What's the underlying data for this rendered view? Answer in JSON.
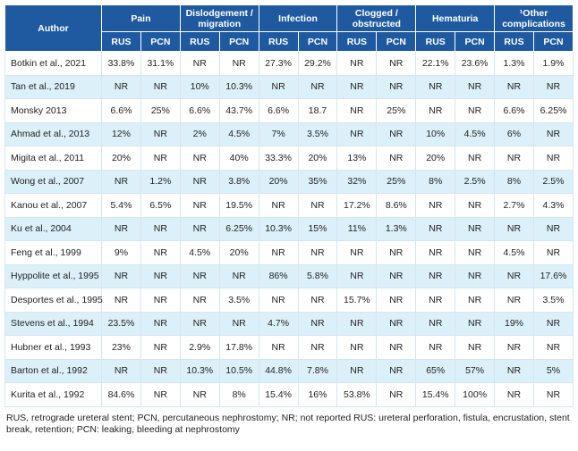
{
  "header": {
    "author": "Author",
    "groups": [
      "Pain",
      "Dislodgement / migration",
      "Infection",
      "Clogged / obstructed",
      "Hematuria",
      "¹Other complications"
    ],
    "subheaders": [
      "RUS",
      "PCN",
      "RUS",
      "PCN",
      "RUS",
      "PCN",
      "RUS",
      "PCN",
      "RUS",
      "PCN",
      "RUS",
      "PCN"
    ]
  },
  "table": {
    "rows": [
      [
        "Botkin et al., 2021",
        "33.8%",
        "31.1%",
        "NR",
        "NR",
        "27.3%",
        "29.2%",
        "NR",
        "NR",
        "22.1%",
        "23.6%",
        "1.3%",
        "1.9%"
      ],
      [
        "Tan et al., 2019",
        "NR",
        "NR",
        "10%",
        "10.3%",
        "NR",
        "NR",
        "NR",
        "NR",
        "NR",
        "NR",
        "NR",
        "NR"
      ],
      [
        "Monsky 2013",
        "6.6%",
        "25%",
        "6.6%",
        "43.7%",
        "6.6%",
        "18.7",
        "NR",
        "25%",
        "NR",
        "NR",
        "6.6%",
        "6.25%"
      ],
      [
        "Ahmad et al., 2013",
        "12%",
        "NR",
        "2%",
        "4.5%",
        "7%",
        "3.5%",
        "NR",
        "NR",
        "10%",
        "4.5%",
        "6%",
        "NR"
      ],
      [
        "Migita et al., 2011",
        "20%",
        "NR",
        "NR",
        "40%",
        "33.3%",
        "20%",
        "13%",
        "NR",
        "20%",
        "NR",
        "NR",
        "NR"
      ],
      [
        "Wong et al., 2007",
        "NR",
        "1.2%",
        "NR",
        "3.8%",
        "20%",
        "35%",
        "32%",
        "25%",
        "8%",
        "2.5%",
        "8%",
        "2.5%"
      ],
      [
        "Kanou et al., 2007",
        "5.4%",
        "6.5%",
        "NR",
        "19.5%",
        "NR",
        "NR",
        "17.2%",
        "8.6%",
        "NR",
        "NR",
        "2.7%",
        "4.3%"
      ],
      [
        "Ku et al., 2004",
        "NR",
        "NR",
        "NR",
        "6.25%",
        "10.3%",
        "15%",
        "11%",
        "1.3%",
        "NR",
        "NR",
        "NR",
        "NR"
      ],
      [
        "Feng et al., 1999",
        "9%",
        "NR",
        "4.5%",
        "20%",
        "NR",
        "NR",
        "NR",
        "NR",
        "NR",
        "NR",
        "4.5%",
        "NR"
      ],
      [
        "Hyppolite et al., 1995",
        "NR",
        "NR",
        "NR",
        "NR",
        "86%",
        "5.8%",
        "NR",
        "NR",
        "NR",
        "NR",
        "NR",
        "17.6%"
      ],
      [
        "Desportes et al., 1995",
        "NR",
        "NR",
        "NR",
        "3.5%",
        "NR",
        "NR",
        "15.7%",
        "NR",
        "NR",
        "NR",
        "NR",
        "3.5%"
      ],
      [
        "Stevens et al., 1994",
        "23.5%",
        "NR",
        "NR",
        "NR",
        "4.7%",
        "NR",
        "NR",
        "NR",
        "NR",
        "NR",
        "19%",
        "NR"
      ],
      [
        "Hubner et al., 1993",
        "23%",
        "NR",
        "2.9%",
        "17.8%",
        "NR",
        "NR",
        "NR",
        "NR",
        "NR",
        "NR",
        "NR",
        "NR"
      ],
      [
        "Barton et al., 1992",
        "NR",
        "NR",
        "10.3%",
        "10.5%",
        "44.8%",
        "7.8%",
        "NR",
        "NR",
        "65%",
        "57%",
        "NR",
        "5%"
      ],
      [
        "Kurita et al., 1992",
        "84.6%",
        "NR",
        "NR",
        "8%",
        "15.4%",
        "16%",
        "53.8%",
        "NR",
        "15.4%",
        "100%",
        "NR",
        "NR"
      ]
    ]
  },
  "footnote": "RUS, retrograde ureteral stent; PCN, percutaneous nephrostomy; NR; not reported RUS: ureteral perforation, fistula, encrustation, stent break, retention; PCN: leaking, bleeding at nephrostomy"
}
